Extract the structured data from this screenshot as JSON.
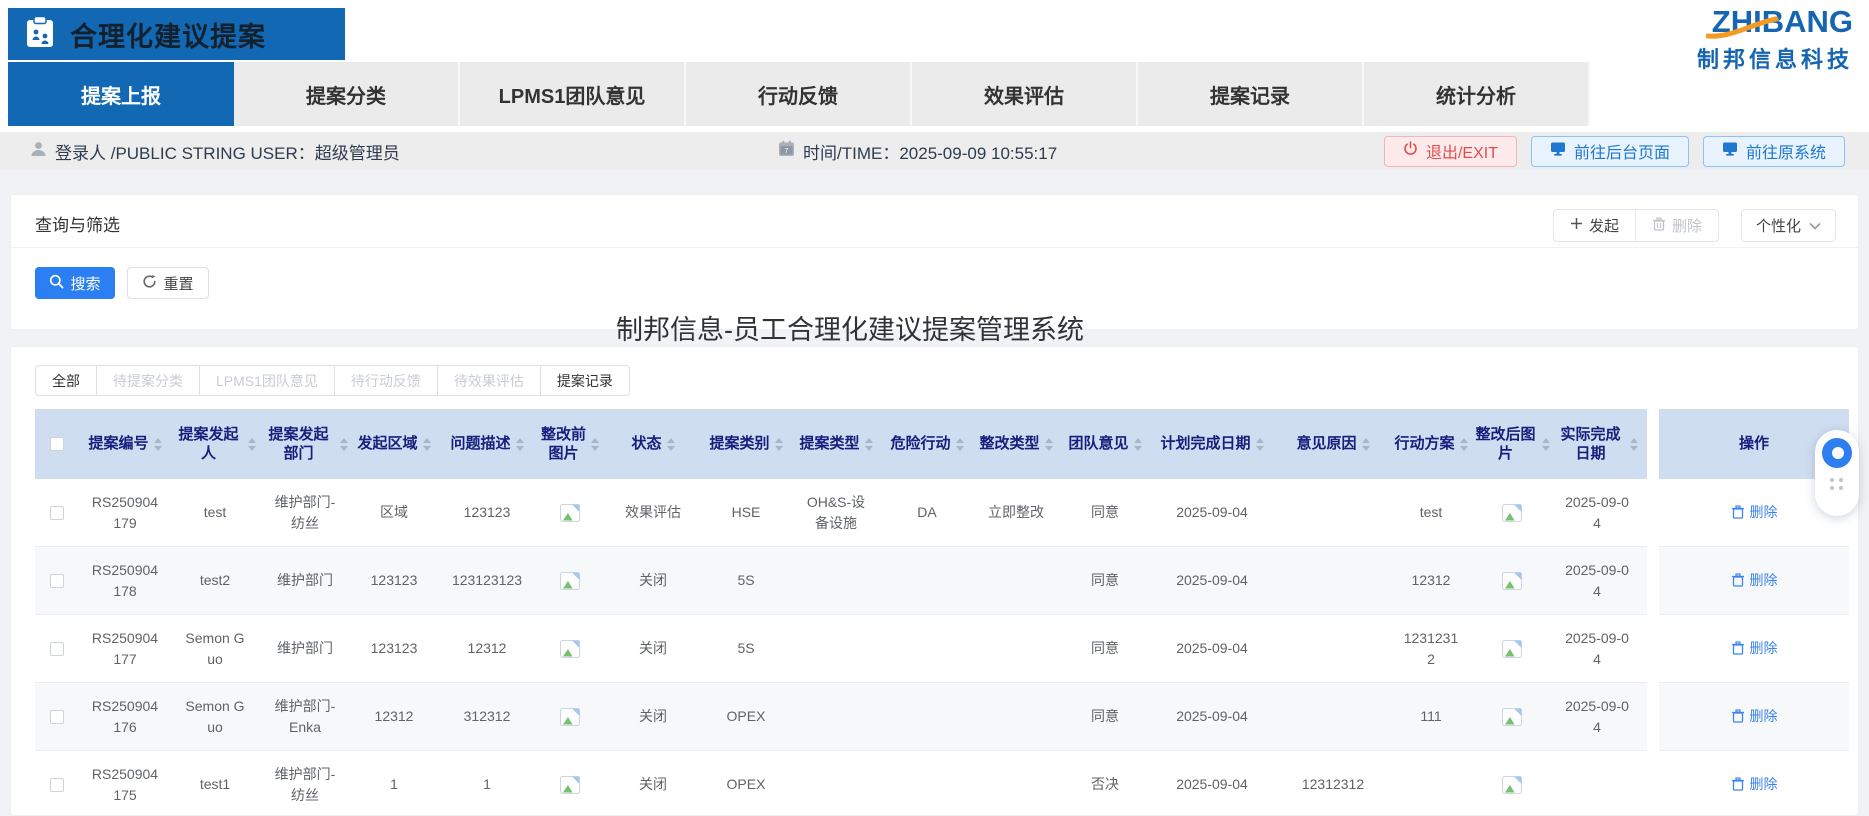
{
  "header": {
    "logo_title": "合理化建议提案",
    "brand_name": "ZHIBANG",
    "brand_subtitle": "制邦信息科技"
  },
  "tabs": [
    {
      "label": "提案上报",
      "active": true
    },
    {
      "label": "提案分类",
      "active": false
    },
    {
      "label": "LPMS1团队意见",
      "active": false
    },
    {
      "label": "行动反馈",
      "active": false
    },
    {
      "label": "效果评估",
      "active": false
    },
    {
      "label": "提案记录",
      "active": false
    },
    {
      "label": "统计分析",
      "active": false
    }
  ],
  "user_bar": {
    "login": "登录人 /PUBLIC STRING USER：超级管理员",
    "time": "时间/TIME：2025-09-09 10:55:17",
    "exit_button": "退出/EXIT",
    "backend_button": "前往后台页面",
    "origin_button": "前往原系统"
  },
  "query_panel": {
    "title": "查询与筛选",
    "search_button": "搜索",
    "reset_button": "重置",
    "launch_button": "发起",
    "delete_button": "删除",
    "personalize_button": "个性化"
  },
  "page_title": "制邦信息-员工合理化建议提案管理系统",
  "filter_tabs": [
    {
      "label": "全部",
      "state": "normal"
    },
    {
      "label": "待提案分类",
      "state": "disabled"
    },
    {
      "label": "LPMS1团队意见",
      "state": "disabled"
    },
    {
      "label": "待行动反馈",
      "state": "disabled"
    },
    {
      "label": "待效果评估",
      "state": "disabled"
    },
    {
      "label": "提案记录",
      "state": "normal"
    }
  ],
  "table": {
    "columns": [
      "提案编号",
      "提案发起人",
      "提案发起部门",
      "发起区域",
      "问题描述",
      "整改前图片",
      "状态",
      "提案类别",
      "提案类型",
      "危险行动",
      "整改类型",
      "团队意见",
      "计划完成日期",
      "意见原因",
      "行动方案",
      "整改后图片",
      "实际完成日期",
      "操作"
    ],
    "delete_action": "删除",
    "rows": [
      {
        "proposal_no": "RS250904179",
        "proposer": "test",
        "department": "维护部门-纺丝",
        "area": "区域",
        "description": "123123",
        "image_before": "图片",
        "status": "效果评估",
        "category": "HSE",
        "type": "OH&S-设备设施",
        "danger_action": "DA",
        "rectify_type": "立即整改",
        "team_opinion": "同意",
        "plan_date": "2025-09-04",
        "opinion_reason": "",
        "action_plan": "test",
        "image_after": "图片",
        "actual_date": "2025-09-04"
      },
      {
        "proposal_no": "RS250904178",
        "proposer": "test2",
        "department": "维护部门",
        "area": "123123",
        "description": "123123123",
        "image_before": "图片",
        "status": "关闭",
        "category": "5S",
        "type": "",
        "danger_action": "",
        "rectify_type": "",
        "team_opinion": "同意",
        "plan_date": "2025-09-04",
        "opinion_reason": "",
        "action_plan": "12312",
        "image_after": "图片",
        "actual_date": "2025-09-04"
      },
      {
        "proposal_no": "RS250904177",
        "proposer": "Semon Guo",
        "department": "维护部门",
        "area": "123123",
        "description": "12312",
        "image_before": "图片",
        "status": "关闭",
        "category": "5S",
        "type": "",
        "danger_action": "",
        "rectify_type": "",
        "team_opinion": "同意",
        "plan_date": "2025-09-04",
        "opinion_reason": "",
        "action_plan": "12312312",
        "image_after": "图片",
        "actual_date": "2025-09-04"
      },
      {
        "proposal_no": "RS250904176",
        "proposer": "Semon Guo",
        "department": "维护部门-Enka",
        "area": "12312",
        "description": "312312",
        "image_before": "图片",
        "status": "关闭",
        "category": "OPEX",
        "type": "",
        "danger_action": "",
        "rectify_type": "",
        "team_opinion": "同意",
        "plan_date": "2025-09-04",
        "opinion_reason": "",
        "action_plan": "111",
        "image_after": "图片",
        "actual_date": "2025-09-04"
      },
      {
        "proposal_no": "RS250904175",
        "proposer": "test1",
        "department": "维护部门-纺丝",
        "area": "1",
        "description": "1",
        "image_before": "图片",
        "status": "关闭",
        "category": "OPEX",
        "type": "",
        "danger_action": "",
        "rectify_type": "",
        "team_opinion": "否决",
        "plan_date": "2025-09-04",
        "opinion_reason": "12312312",
        "action_plan": "",
        "image_after": "图片",
        "actual_date": ""
      }
    ]
  },
  "colors": {
    "primary_blue": "#1268b3",
    "accent_blue": "#2b7ff2",
    "table_header_bg": "#cfddf1",
    "table_header_text": "#16207c",
    "danger_red": "#e34d4d",
    "link_blue": "#3c85ec",
    "brand_blue": "#1565b0",
    "brand_orange": "#f59a23"
  }
}
